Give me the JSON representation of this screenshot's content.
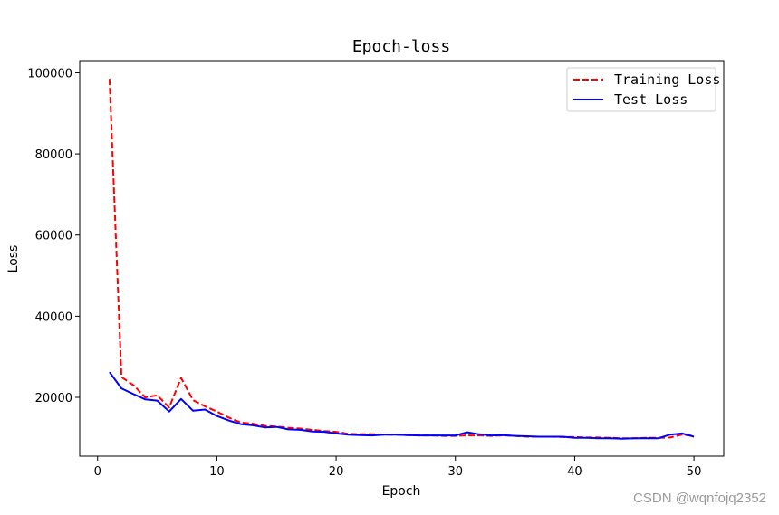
{
  "chart_data": {
    "type": "line",
    "title": "Epoch-loss",
    "xlabel": "Epoch",
    "ylabel": "Loss",
    "xlim": [
      -1.5,
      52.5
    ],
    "ylim": [
      5500,
      103000
    ],
    "xticks": [
      0,
      10,
      20,
      30,
      40,
      50
    ],
    "yticks": [
      20000,
      40000,
      60000,
      80000,
      100000
    ],
    "legend_position": "top-right",
    "x": [
      1,
      2,
      3,
      4,
      5,
      6,
      7,
      8,
      9,
      10,
      11,
      12,
      13,
      14,
      15,
      16,
      17,
      18,
      19,
      20,
      21,
      22,
      23,
      24,
      25,
      26,
      27,
      28,
      29,
      30,
      31,
      32,
      33,
      34,
      35,
      36,
      37,
      38,
      39,
      40,
      41,
      42,
      43,
      44,
      45,
      46,
      47,
      48,
      49,
      50
    ],
    "series": [
      {
        "name": "Training Loss",
        "color": "#ff0000",
        "dash": "dashed",
        "values": [
          98500,
          25000,
          23000,
          20000,
          20500,
          17500,
          24800,
          19300,
          17800,
          16500,
          15000,
          13800,
          13500,
          13000,
          12800,
          12500,
          12300,
          12000,
          11700,
          11500,
          11000,
          10900,
          10900,
          10800,
          10800,
          10700,
          10600,
          10600,
          10500,
          10500,
          10600,
          10600,
          10500,
          10600,
          10500,
          10300,
          10300,
          10300,
          10200,
          10200,
          10100,
          10100,
          10000,
          9900,
          9900,
          10000,
          10000,
          10100,
          10800,
          10500
        ]
      },
      {
        "name": "Test Loss",
        "color": "#0000ff",
        "dash": "solid",
        "values": [
          26200,
          22200,
          20800,
          19500,
          19200,
          16500,
          19600,
          16700,
          17000,
          15400,
          14300,
          13400,
          13100,
          12600,
          12700,
          12100,
          12000,
          11600,
          11500,
          11100,
          10800,
          10700,
          10600,
          10800,
          10800,
          10700,
          10600,
          10600,
          10600,
          10600,
          11400,
          10900,
          10600,
          10700,
          10500,
          10400,
          10300,
          10300,
          10300,
          10000,
          10000,
          9900,
          9900,
          9800,
          9900,
          9900,
          9900,
          10800,
          11100,
          10300
        ]
      }
    ]
  },
  "watermark": "CSDN @wqnfojq2352"
}
